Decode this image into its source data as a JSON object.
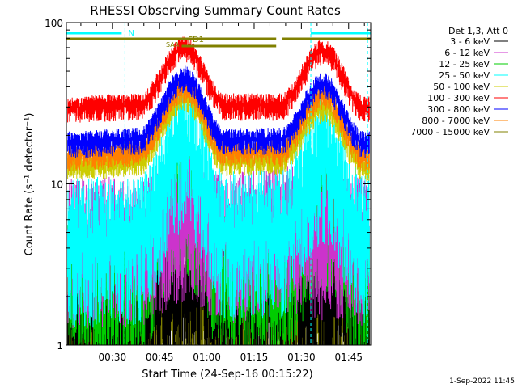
{
  "chart_data": {
    "type": "line",
    "title": "RHESSI Observing Summary Count Rates",
    "ylabel": "Count Rate (s⁻¹ detector⁻¹)",
    "xlabel": "Start Time (24-Sep-16 00:15:22)",
    "yscale": "log",
    "ylim": [
      1,
      100
    ],
    "xlim_minutes": [
      15.4,
      112.0
    ],
    "yticks": [
      {
        "v": 1,
        "label": "1"
      },
      {
        "v": 10,
        "label": "10"
      },
      {
        "v": 100,
        "label": "100"
      }
    ],
    "xticks": [
      {
        "m": 30,
        "label": "00:30"
      },
      {
        "m": 45,
        "label": "00:45"
      },
      {
        "m": 60,
        "label": "01:00"
      },
      {
        "m": 75,
        "label": "01:15"
      },
      {
        "m": 90,
        "label": "01:30"
      },
      {
        "m": 105,
        "label": "01:45"
      }
    ],
    "legend_header": "Det 1,3, Att 0",
    "legend_position": "right",
    "timestamp": "1-Sep-2022 11:45",
    "series": [
      {
        "name": "3 - 6 keV",
        "color": "#000000",
        "x": [
          16,
          38,
          53,
          66,
          83,
          97,
          110
        ],
        "y": [
          1.6,
          1.7,
          2.4,
          1.8,
          2.2,
          1.9,
          1.7
        ]
      },
      {
        "name": "6 - 12 keV",
        "color": "#cc33cc",
        "x": [
          16,
          38,
          53,
          66,
          83,
          97,
          110
        ],
        "y": [
          4.5,
          4.6,
          6.5,
          4.8,
          5.5,
          5.0,
          4.6
        ]
      },
      {
        "name": "12 - 25 keV",
        "color": "#00cc00",
        "x": [
          16,
          38,
          53,
          66,
          83,
          97,
          110
        ],
        "y": [
          2.5,
          2.6,
          8.5,
          2.9,
          2.7,
          7.5,
          2.6
        ]
      },
      {
        "name": "25 - 50 keV",
        "color": "#00ffff",
        "x": [
          16,
          38,
          53,
          66,
          83,
          97,
          110
        ],
        "y": [
          4.5,
          4.7,
          18,
          5.0,
          5.2,
          15,
          4.8
        ]
      },
      {
        "name": "50 - 100 keV",
        "color": "#cccc00",
        "x": [
          16,
          38,
          53,
          66,
          83,
          97,
          110
        ],
        "y": [
          13,
          14,
          35,
          14,
          14,
          30,
          13
        ]
      },
      {
        "name": "100 - 300 keV",
        "color": "#ff0000",
        "x": [
          16,
          38,
          53,
          66,
          83,
          97,
          110
        ],
        "y": [
          30,
          31,
          70,
          31,
          31,
          68,
          30
        ]
      },
      {
        "name": "300 - 800 keV",
        "color": "#0000ff",
        "x": [
          16,
          38,
          53,
          66,
          83,
          97,
          110
        ],
        "y": [
          18,
          19,
          46,
          19,
          19,
          42,
          18
        ]
      },
      {
        "name": "800 - 7000 keV",
        "color": "#ff8000",
        "x": [
          16,
          38,
          53,
          66,
          83,
          97,
          110
        ],
        "y": [
          15,
          16,
          40,
          16,
          16,
          36,
          15
        ]
      },
      {
        "name": "7000 - 15000 keV",
        "color": "#808000",
        "x": [
          16,
          38,
          53,
          66,
          83,
          97,
          110
        ],
        "y": [
          1.3,
          1.4,
          2.0,
          1.5,
          1.6,
          1.8,
          1.4
        ]
      }
    ],
    "annotations": {
      "night_label": "N",
      "flare_label": "FD1",
      "saa_label": "SAA"
    }
  }
}
